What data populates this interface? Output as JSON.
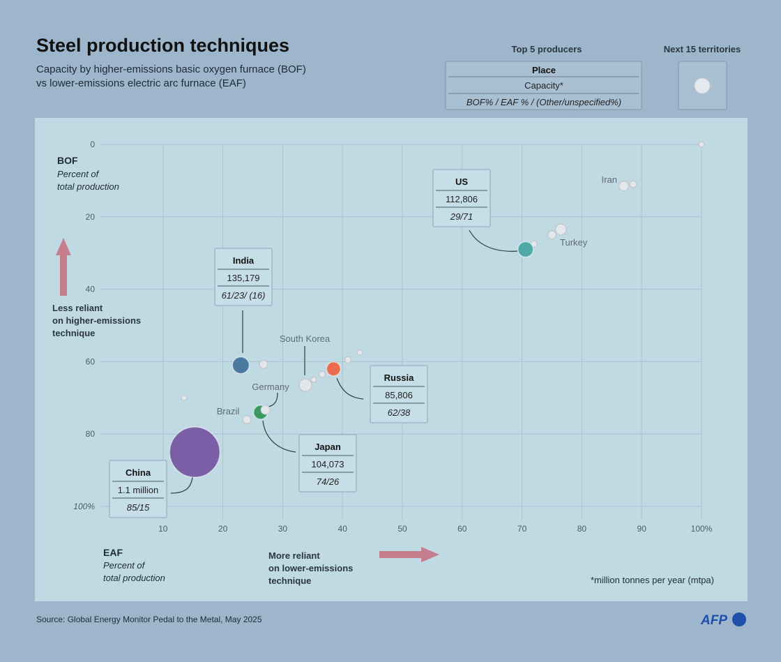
{
  "header": {
    "title": "Steel production techniques",
    "subtitle_1": "Capacity by higher-emissions basic oxygen furnace (BOF)",
    "subtitle_2": "vs lower-emissions electric arc furnace (EAF)"
  },
  "legend": {
    "top5_title": "Top 5 producers",
    "top5_rows": [
      "Place",
      "Capacity*",
      "BOF% / EAF % / (Other/unspecified%)"
    ],
    "next15_title": "Next 15 territories"
  },
  "footer": {
    "source": "Source: Global Energy Monitor Pedal to the Metal, May 2025",
    "logo": "AFP"
  },
  "chart_data": {
    "type": "scatter",
    "title": "Steel production techniques",
    "y_axis": {
      "label": "BOF",
      "sublabel": "Percent of total production",
      "range": [
        0,
        100
      ],
      "inverted": true,
      "ticks": [
        "0",
        "20",
        "40",
        "60",
        "80",
        "100%"
      ],
      "note": [
        "Less reliant",
        "on higher-emissions",
        "technique"
      ]
    },
    "x_axis": {
      "label": "EAF",
      "sublabel": "Percent of total production",
      "range": [
        0,
        100
      ],
      "ticks": [
        "10",
        "20",
        "30",
        "40",
        "50",
        "60",
        "70",
        "80",
        "90",
        "100%"
      ],
      "note": [
        "More reliant",
        "on lower-emissions",
        "technique"
      ]
    },
    "unit_note": "*million tonnes per year (mtpa)",
    "grid": true,
    "arrow_color": "#c67e8e",
    "top5": [
      {
        "place": "China",
        "capacity": "1.1 million",
        "ratio": "85/15",
        "eaf": 15.3,
        "bof": 85,
        "color": "#7a5fa6"
      },
      {
        "place": "India",
        "capacity": "135,179",
        "ratio": "61/23/ (16)",
        "eaf": 23,
        "bof": 61,
        "color": "#4a7aa0"
      },
      {
        "place": "US",
        "capacity": "112,806",
        "ratio": "29/71",
        "eaf": 70.6,
        "bof": 29,
        "color": "#4eaaa6"
      },
      {
        "place": "Japan",
        "capacity": "104,073",
        "ratio": "74/26",
        "eaf": 26.3,
        "bof": 74,
        "color": "#3b9a64"
      },
      {
        "place": "Russia",
        "capacity": "85,806",
        "ratio": "62/38",
        "eaf": 38.5,
        "bof": 62,
        "color": "#ea6d4f"
      }
    ],
    "others": [
      {
        "label": "Germany",
        "eaf": 27,
        "bof": 73.5
      },
      {
        "label": "Brazil",
        "eaf": 24,
        "bof": 76
      },
      {
        "label": "South Korea",
        "eaf": 33.8,
        "bof": 66.5
      },
      {
        "label": "Turkey",
        "eaf": 76.5,
        "bof": 23.5
      },
      {
        "label": "Iran",
        "eaf": 87,
        "bof": 11.5
      },
      {
        "label": "",
        "eaf": 88.6,
        "bof": 11
      },
      {
        "label": "",
        "eaf": 75,
        "bof": 25
      },
      {
        "label": "",
        "eaf": 72,
        "bof": 27.5
      },
      {
        "label": "",
        "eaf": 100,
        "bof": 0
      },
      {
        "label": "",
        "eaf": 13.5,
        "bof": 70
      },
      {
        "label": "",
        "eaf": 26.8,
        "bof": 60.8
      },
      {
        "label": "",
        "eaf": 35.2,
        "bof": 65
      },
      {
        "label": "",
        "eaf": 36.6,
        "bof": 63.5
      },
      {
        "label": "",
        "eaf": 40.9,
        "bof": 59.5
      },
      {
        "label": "",
        "eaf": 42.9,
        "bof": 57.5
      }
    ]
  }
}
